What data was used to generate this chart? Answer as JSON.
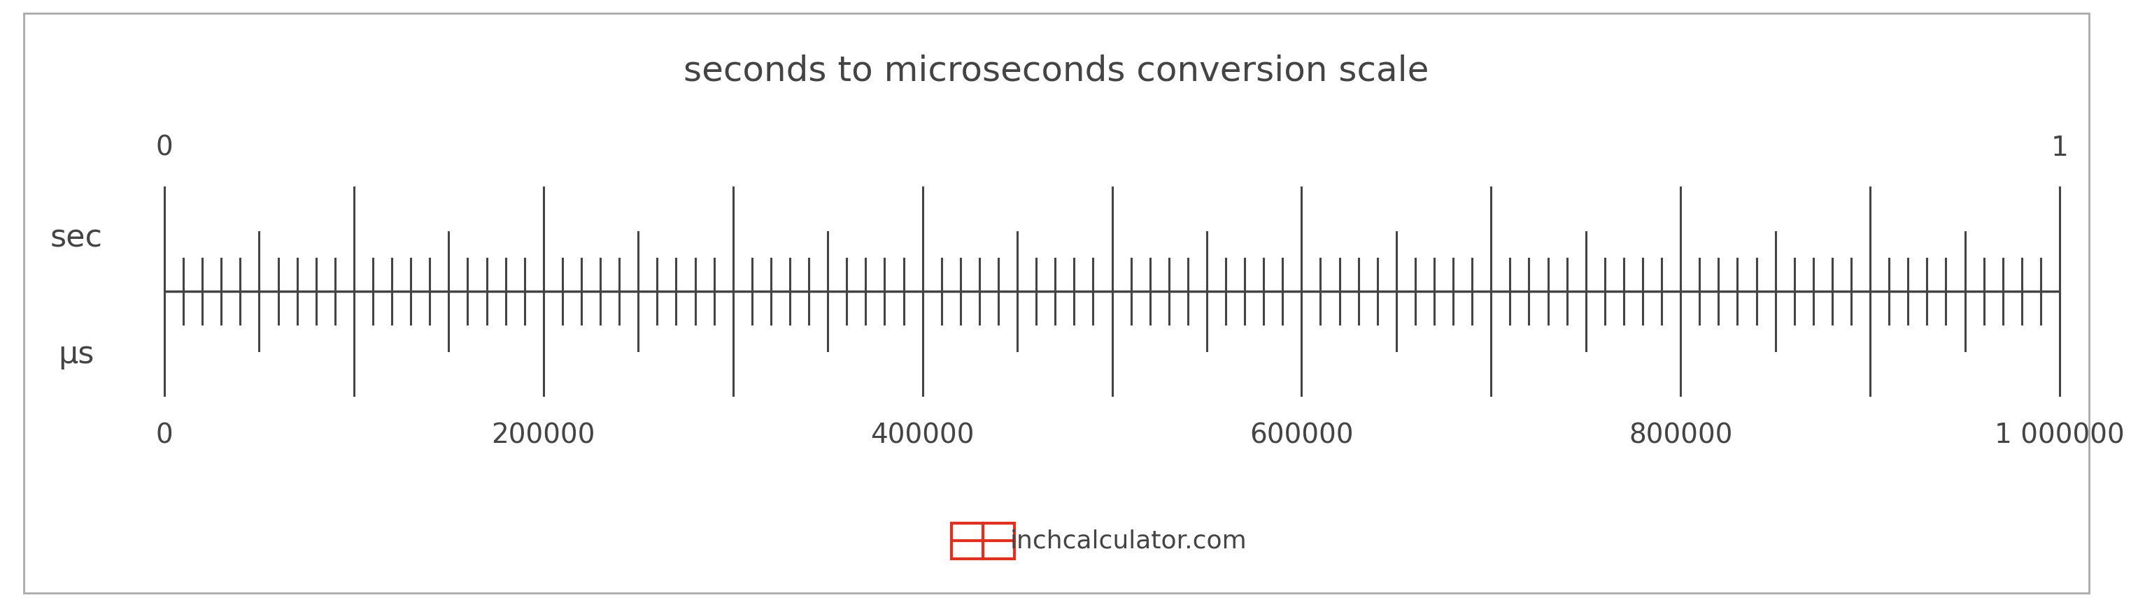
{
  "title": "seconds to microseconds conversion scale",
  "title_fontsize": 36,
  "title_color": "#444444",
  "background_color": "#ffffff",
  "ruler_color": "#444444",
  "sec_label": "sec",
  "us_label": "μs",
  "us_major_ticks": [
    0,
    200000,
    400000,
    600000,
    800000,
    1000000
  ],
  "us_major_tick_labels": [
    "0",
    "200000",
    "400000",
    "600000",
    "800000",
    "1 000000"
  ],
  "us_minor_ticks_step": 10000,
  "us_mid_ticks_step": 50000,
  "us_major_ticks_step": 100000,
  "us_max": 1000000,
  "watermark_text": "inchcalculator.com",
  "watermark_color": "#444444",
  "watermark_icon_color": "#e03020",
  "tick_label_fontsize": 28,
  "unit_label_fontsize": 32
}
